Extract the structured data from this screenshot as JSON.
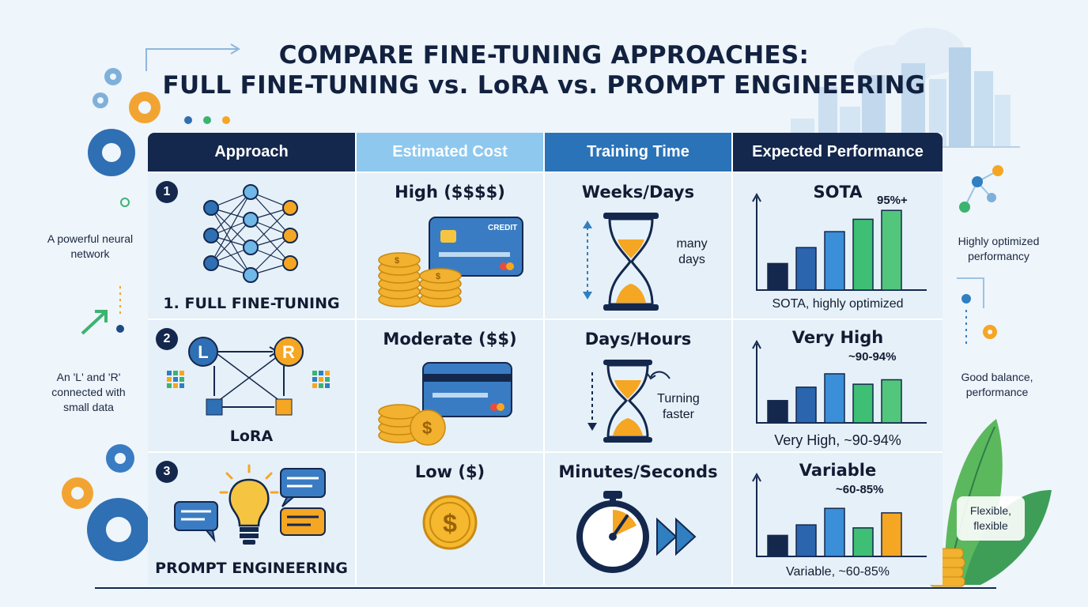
{
  "title_line1": "COMPARE FINE-TUNING APPROACHES:",
  "title_line2": "FULL FINE-TUNING vs. LoRA vs. PROMPT ENGINEERING",
  "headers": [
    "Approach",
    "Estimated Cost",
    "Training Time",
    "Expected Performance"
  ],
  "colors": {
    "header_dark": "#14284e",
    "header_light": "#8ec8ee",
    "header_mid": "#2a73b8",
    "accent_orange": "#f5a623",
    "accent_green": "#3cb371",
    "accent_blue": "#2f7fc1"
  },
  "rows": [
    {
      "number": "1",
      "approach": "1. FULL FINE-TUNING",
      "cost": "High ($$$$)",
      "card_text": "CREDIT",
      "time": "Weeks/Days",
      "time_note": "many days",
      "perf_title": "SOTA",
      "perf_value": "95%+",
      "perf_caption": "SOTA, highly optimized",
      "bars": [
        0.3,
        0.48,
        0.66,
        0.8,
        0.9
      ]
    },
    {
      "number": "2",
      "approach": "LoRA",
      "node_left": "L",
      "node_right": "R",
      "cost": "Moderate ($$)",
      "time": "Days/Hours",
      "time_note": "Turning faster",
      "perf_title": "Very High",
      "perf_value": "~90-94%",
      "perf_caption": "Very High, ~90-94%",
      "bars": [
        0.3,
        0.48,
        0.66,
        0.52,
        0.58
      ]
    },
    {
      "number": "3",
      "approach": "PROMPT ENGINEERING",
      "cost": "Low ($)",
      "time": "Minutes/Seconds",
      "perf_title": "Variable",
      "perf_value": "~60-85%",
      "perf_caption": "Variable, ~60-85%",
      "bars": [
        0.28,
        0.42,
        0.64,
        0.38,
        0.58
      ]
    }
  ],
  "side_notes": {
    "left_1": "A powerful neural network",
    "left_2": "An 'L' and 'R' connected with small data",
    "right_1": "Highly optimized performancy",
    "right_2": "Good balance, performance",
    "right_3": "Flexible, flexible"
  }
}
